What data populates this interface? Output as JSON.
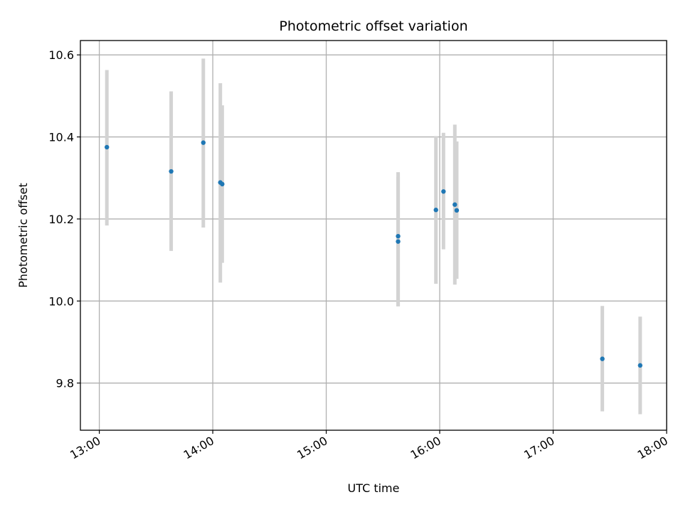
{
  "chart_data": {
    "type": "scatter",
    "title": "Photometric offset variation",
    "xlabel": "UTC time",
    "ylabel": "Photometric offset",
    "x_tick_labels": [
      "13:00",
      "14:00",
      "15:00",
      "16:00",
      "17:00",
      "18:00"
    ],
    "y_tick_labels": [
      "9.8",
      "10.0",
      "10.2",
      "10.4",
      "10.6"
    ],
    "y_ticks": [
      9.8,
      10.0,
      10.2,
      10.4,
      10.6
    ],
    "x_range": [
      "12:50",
      "18:00"
    ],
    "ylim": [
      9.685,
      10.635
    ],
    "grid": true,
    "x_tick_rotation": "30 degrees",
    "colors": {
      "point": "#1f77b4",
      "errorbar": "#d3d3d3",
      "grid": "#b0b0b0",
      "axes": "#000000"
    },
    "points": [
      {
        "time": "13:04",
        "y": 10.375,
        "y_low": 10.184,
        "y_high": 10.563
      },
      {
        "time": "13:38",
        "y": 10.316,
        "y_low": 10.122,
        "y_high": 10.511
      },
      {
        "time": "13:55",
        "y": 10.386,
        "y_low": 10.179,
        "y_high": 10.591
      },
      {
        "time": "14:04",
        "y": 10.289,
        "y_low": 10.045,
        "y_high": 10.531
      },
      {
        "time": "14:05",
        "y": 10.285,
        "y_low": 10.093,
        "y_high": 10.477
      },
      {
        "time": "15:38",
        "y": 10.158,
        "y_low": 9.987,
        "y_high": 10.314
      },
      {
        "time": "15:38",
        "y": 10.145,
        "y_low": 9.987,
        "y_high": 10.302
      },
      {
        "time": "15:58",
        "y": 10.222,
        "y_low": 10.042,
        "y_high": 10.402
      },
      {
        "time": "16:02",
        "y": 10.267,
        "y_low": 10.126,
        "y_high": 10.41
      },
      {
        "time": "16:08",
        "y": 10.235,
        "y_low": 10.04,
        "y_high": 10.43
      },
      {
        "time": "16:09",
        "y": 10.221,
        "y_low": 10.054,
        "y_high": 10.389
      },
      {
        "time": "17:26",
        "y": 9.859,
        "y_low": 9.731,
        "y_high": 9.988
      },
      {
        "time": "17:46",
        "y": 9.843,
        "y_low": 9.724,
        "y_high": 9.962
      }
    ]
  }
}
